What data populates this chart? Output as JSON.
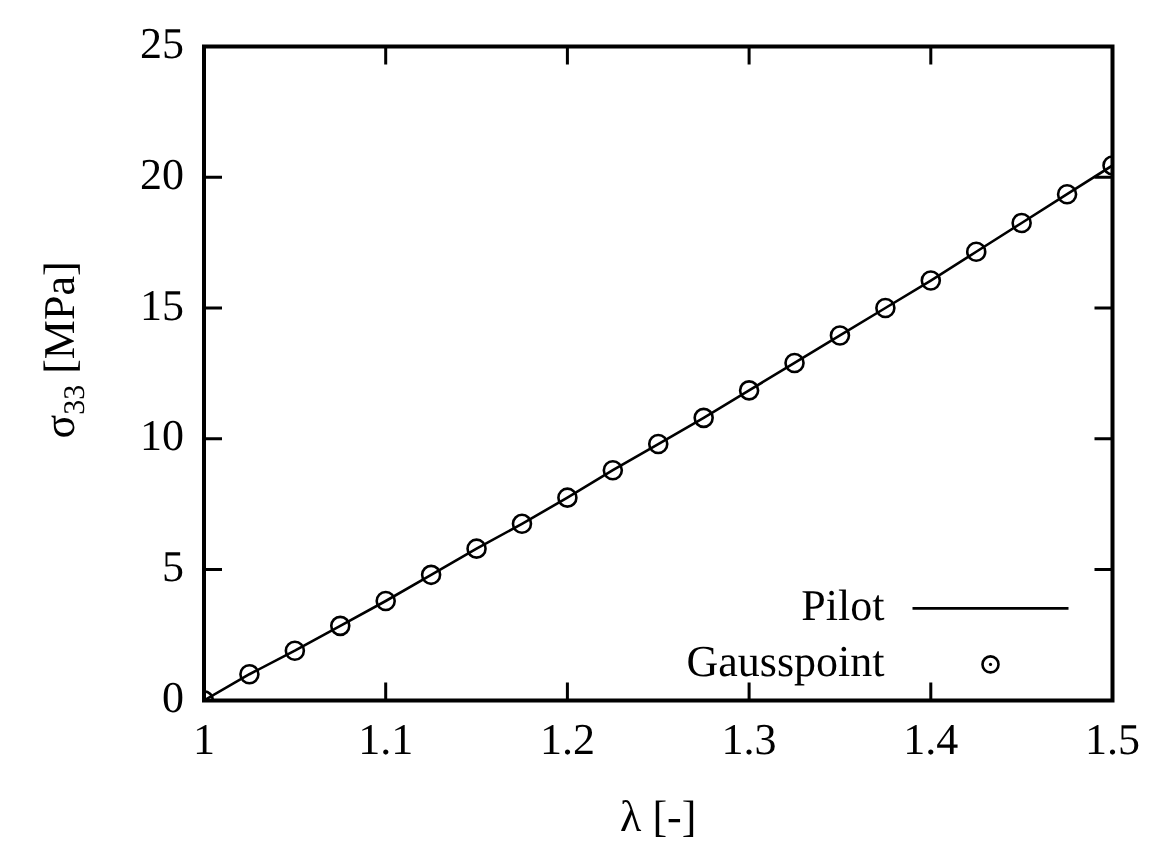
{
  "chart_data": {
    "type": "line",
    "xlabel": "λ [-]",
    "ylabel": "σ$_{33}$ [MPa]",
    "xlim": [
      1,
      1.5
    ],
    "xticks": [
      1,
      1.1,
      1.2,
      1.3,
      1.4,
      1.5
    ],
    "ylim": [
      0,
      25
    ],
    "yticks": [
      0,
      5,
      10,
      15,
      20,
      25
    ],
    "grid": false,
    "legend": "bottom right",
    "series": [
      {
        "name": "Pilot",
        "type": "line",
        "color": "#000000",
        "marker": "none",
        "line_style": "solid",
        "x": [
          1,
          1.025,
          1.05,
          1.075,
          1.1,
          1.125,
          1.15,
          1.175,
          1.2,
          1.225,
          1.25,
          1.275,
          1.3,
          1.325,
          1.35,
          1.375,
          1.4,
          1.425,
          1.45,
          1.475,
          1.5
        ],
        "values": [
          0,
          1.0,
          1.9,
          2.85,
          3.8,
          4.8,
          5.8,
          6.75,
          7.75,
          8.8,
          9.8,
          10.8,
          11.85,
          12.9,
          13.95,
          15.0,
          16.05,
          17.15,
          18.25,
          19.35,
          20.45
        ]
      },
      {
        "name": "Gausspoint",
        "type": "scatter",
        "color": "#000000",
        "marker": "circle",
        "x": [
          1,
          1.025,
          1.05,
          1.075,
          1.1,
          1.125,
          1.15,
          1.175,
          1.2,
          1.225,
          1.25,
          1.275,
          1.3,
          1.325,
          1.35,
          1.375,
          1.4,
          1.425,
          1.45,
          1.475,
          1.5
        ],
        "values": [
          0,
          1.0,
          1.9,
          2.85,
          3.8,
          4.8,
          5.8,
          6.75,
          7.75,
          8.8,
          9.8,
          10.8,
          11.85,
          12.9,
          13.95,
          15.0,
          16.05,
          17.15,
          18.25,
          19.35,
          20.45
        ]
      }
    ]
  }
}
